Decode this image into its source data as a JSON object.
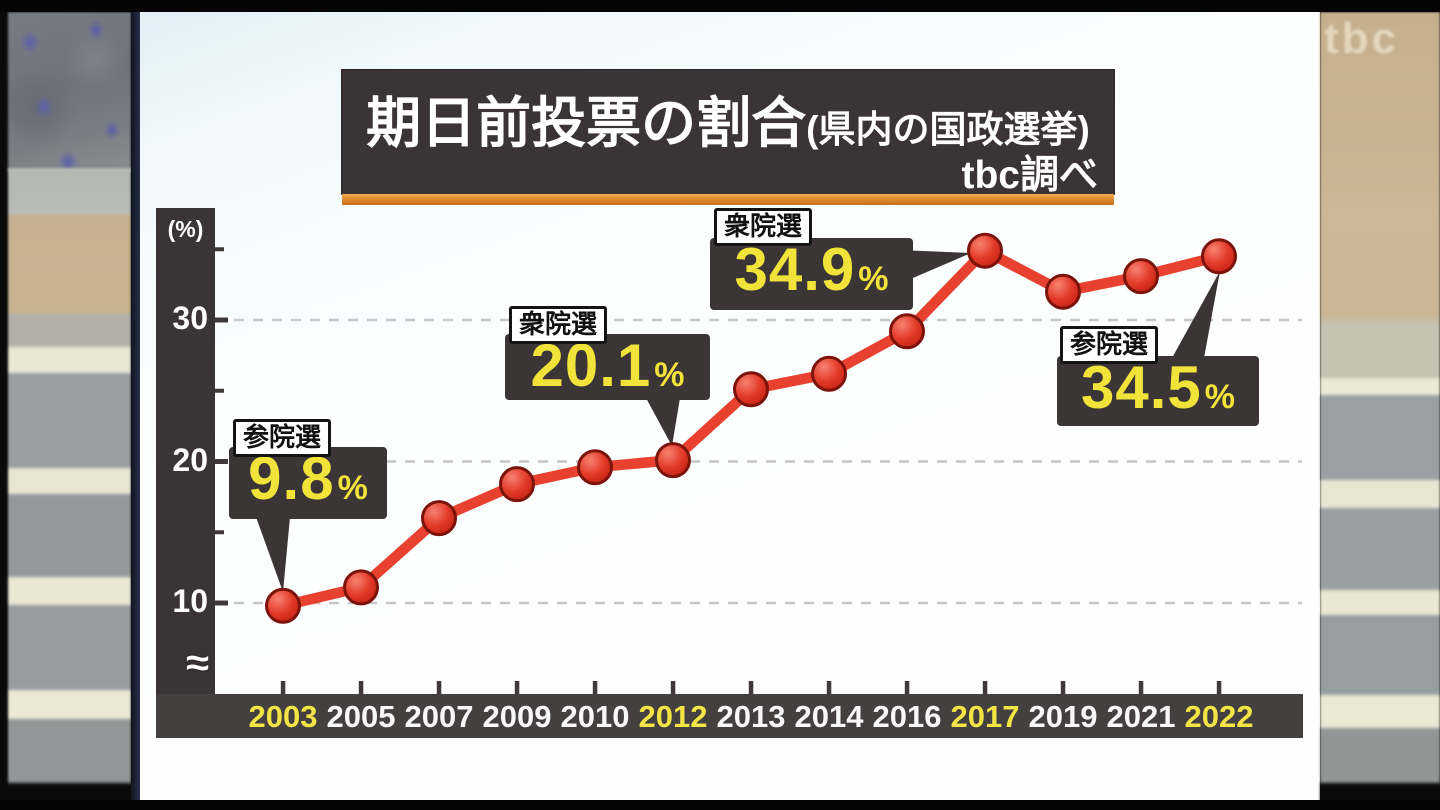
{
  "watermark": {
    "text": "tbc"
  },
  "title": {
    "main": "期日前投票の割合",
    "sub": "(県内の国政選挙)",
    "source": "tbc調べ"
  },
  "y_axis": {
    "unit": "(%)"
  },
  "chart_data": {
    "type": "line",
    "title": "期日前投票の割合(県内の国政選挙)",
    "subtitle": "tbc調べ",
    "xlabel": "",
    "ylabel": "(%)",
    "ylim": [
      7,
      37
    ],
    "axis_break": true,
    "grid": "horizontal dashed gridlines at 10, 20, 30",
    "legend_position": "none",
    "yticks": [
      10,
      20,
      30
    ],
    "yticks_minor": [
      15,
      25,
      35
    ],
    "categories": [
      "2003",
      "2005",
      "2007",
      "2009",
      "2010",
      "2012",
      "2013",
      "2014",
      "2016",
      "2017",
      "2019",
      "2021",
      "2022"
    ],
    "highlighted_categories": [
      "2003",
      "2012",
      "2017",
      "2022"
    ],
    "values": [
      9.8,
      11.1,
      16.0,
      18.4,
      19.6,
      20.1,
      25.1,
      26.2,
      29.2,
      34.9,
      32.0,
      33.1,
      34.5
    ],
    "labeled_points": [
      {
        "year": "2003",
        "election_type": "参院選",
        "value": 9.8,
        "label": "9.8",
        "unit": "%"
      },
      {
        "year": "2012",
        "election_type": "衆院選",
        "value": 20.1,
        "label": "20.1",
        "unit": "%"
      },
      {
        "year": "2017",
        "election_type": "衆院選",
        "value": 34.9,
        "label": "34.9",
        "unit": "%"
      },
      {
        "year": "2022",
        "election_type": "参院選",
        "value": 34.5,
        "label": "34.5",
        "unit": "%"
      }
    ]
  },
  "colors": {
    "line": "#e8412f",
    "point_fill_light": "#f98171",
    "point_fill": "#e23a28",
    "point_fill_dark": "#c21f10",
    "point_stroke": "#7c130a",
    "panel_dark": "#3b3536",
    "axis_band": "#454040",
    "tick": "#3f393a",
    "value_yellow": "#f2e33a",
    "year_highlight": "#f3e545",
    "year_normal": "#f8f8f8",
    "title_underline_orange": "#e08a2e",
    "gridline": "#c6c6c6"
  }
}
